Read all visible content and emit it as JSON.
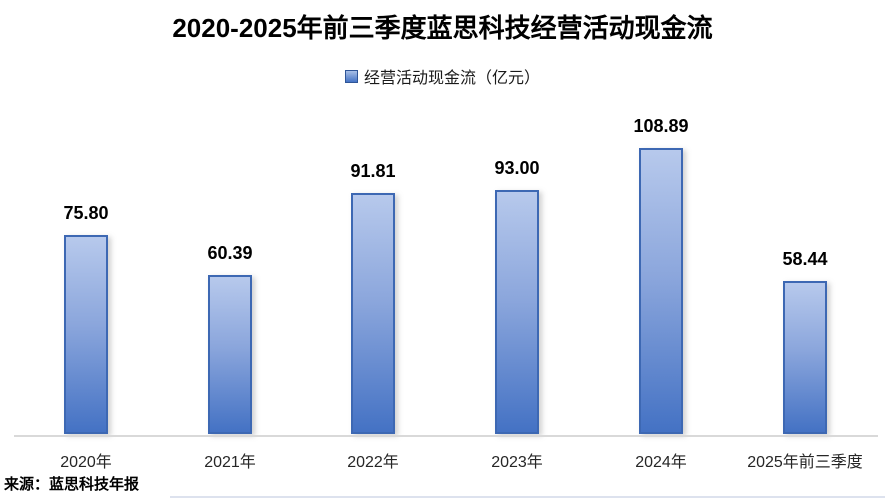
{
  "title": "2020-2025年前三季度蓝思科技经营活动现金流",
  "legend": {
    "label": "经营活动现金流（亿元）",
    "marker_color": "#4472c4"
  },
  "source": "来源：蓝思科技年报",
  "colors": {
    "bar_fill_top": "#b7c9ec",
    "bar_fill_bottom": "#4472c4",
    "bar_border": "#3d68b3",
    "axis_line": "#d9d9d9"
  },
  "chart_data": {
    "type": "bar",
    "title": "2020-2025年前三季度蓝思科技经营活动现金流",
    "categories": [
      "2020年",
      "2021年",
      "2022年",
      "2023年",
      "2024年",
      "2025年前三季度"
    ],
    "values": [
      75.8,
      60.39,
      91.81,
      93.0,
      108.89,
      58.44
    ],
    "value_labels": [
      "75.80",
      "60.39",
      "91.81",
      "93.00",
      "108.89",
      "58.44"
    ],
    "series_name": "经营活动现金流（亿元）",
    "unit": "亿元",
    "xlabel": "",
    "ylabel": "",
    "ylim": [
      0,
      120
    ],
    "grid": false,
    "legend_position": "top-center",
    "data_labels": true,
    "bar_style": "gradient-blue"
  }
}
